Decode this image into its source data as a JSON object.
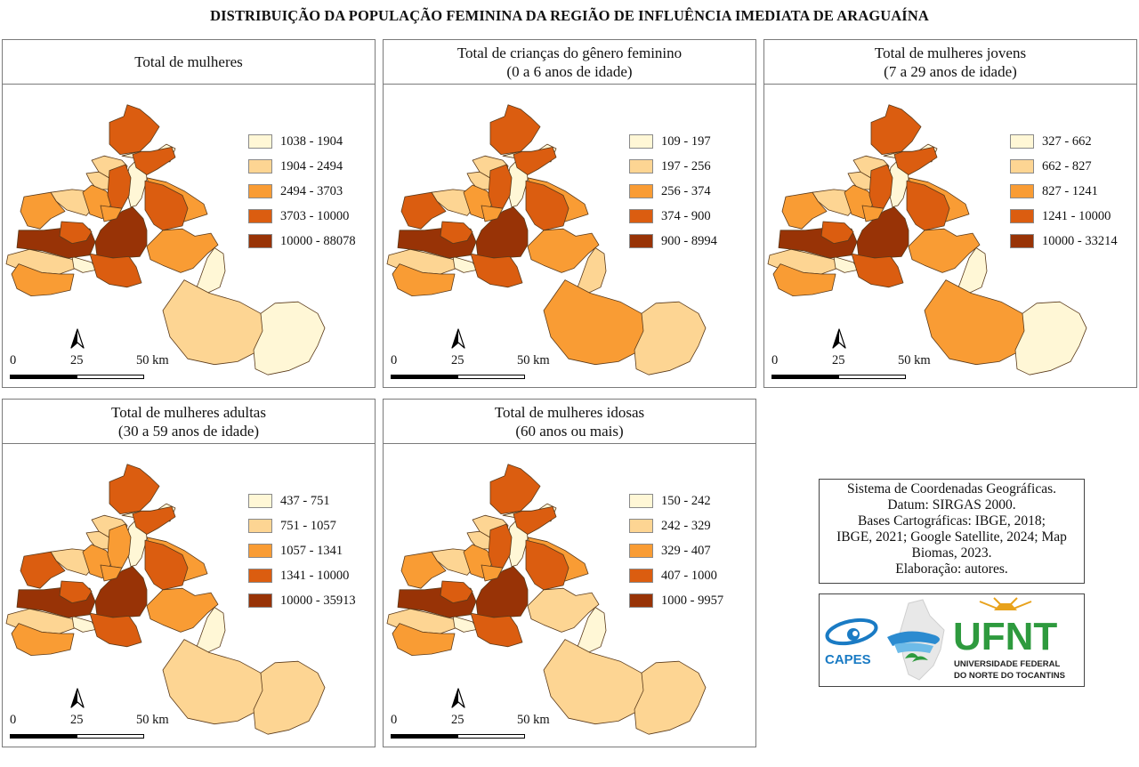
{
  "title": "DISTRIBUIÇÃO DA POPULAÇÃO FEMININA DA REGIÃO DE INFLUÊNCIA IMEDIATA DE ARAGUAÍNA",
  "colors": {
    "c1": "#fff7d6",
    "c2": "#fdd593",
    "c3": "#f99c34",
    "c4": "#db5d10",
    "c5": "#983306",
    "border": "#5a3a1a"
  },
  "panels": [
    {
      "title_lines": [
        "Total de mulheres"
      ],
      "legend": [
        "1038 - 1904",
        "1904 - 2494",
        "2494 - 3703",
        "3703 - 10000",
        "10000 - 88078"
      ],
      "classes": [
        2,
        3,
        1,
        4,
        1,
        1,
        2,
        2,
        2,
        3,
        3,
        5,
        5,
        4,
        3,
        4,
        3,
        1,
        2,
        1,
        4,
        4,
        4,
        3
      ]
    },
    {
      "title_lines": [
        "Total de crianças do gênero feminino",
        "(0 a 6 anos de idade)"
      ],
      "legend": [
        "109 - 197",
        "197 - 256",
        "256 - 374",
        "374 - 900",
        "900 - 8994"
      ],
      "classes": [
        2,
        3,
        1,
        4,
        1,
        1,
        2,
        2,
        2,
        4,
        3,
        5,
        5,
        4,
        3,
        4,
        3,
        2,
        3,
        2,
        4,
        4,
        4,
        3
      ]
    },
    {
      "title_lines": [
        "Total de mulheres jovens",
        "(7 a 29 anos de idade)"
      ],
      "legend": [
        "327 - 662",
        "662 - 827",
        "827 - 1241",
        "1241 - 10000",
        "10000 - 33214"
      ],
      "classes": [
        2,
        3,
        1,
        4,
        1,
        1,
        2,
        2,
        2,
        3,
        3,
        5,
        5,
        4,
        3,
        4,
        3,
        1,
        3,
        1,
        4,
        4,
        4,
        3
      ]
    },
    {
      "title_lines": [
        "Total de mulheres adultas",
        "(30 a 59 anos de idade)"
      ],
      "legend": [
        "437 - 751",
        "751 - 1057",
        "1057 - 1341",
        "1341 - 10000",
        "10000 - 35913"
      ],
      "classes": [
        2,
        3,
        1,
        4,
        1,
        1,
        2,
        2,
        2,
        4,
        3,
        5,
        5,
        4,
        3,
        4,
        3,
        1,
        2,
        2,
        4,
        4,
        3,
        3
      ]
    },
    {
      "title_lines": [
        "Total de mulheres idosas",
        "(60 anos ou mais)"
      ],
      "legend": [
        "150 - 242",
        "242 - 329",
        "329 - 407",
        "407 - 1000",
        "1000 - 9957"
      ],
      "classes": [
        2,
        3,
        1,
        4,
        1,
        1,
        2,
        2,
        2,
        3,
        3,
        5,
        5,
        4,
        3,
        4,
        2,
        1,
        2,
        2,
        4,
        4,
        4,
        3
      ]
    }
  ],
  "scale": {
    "tick0": "0",
    "tick1": "25",
    "tick2": "50 km"
  },
  "info_lines": [
    "Sistema de Coordenadas Geográficas.",
    "Datum: SIRGAS 2000.",
    "Bases Cartográficas: IBGE, 2018;",
    "IBGE, 2021; Google Satellite, 2024; Map",
    "Biomas, 2023.",
    "Elaboração: autores."
  ],
  "logos": {
    "capes": "CAPES",
    "ufnt": "UFNT",
    "ufnt_line1": "UNIVERSIDADE FEDERAL",
    "ufnt_line2": "DO NORTE DO TOCANTINS"
  }
}
